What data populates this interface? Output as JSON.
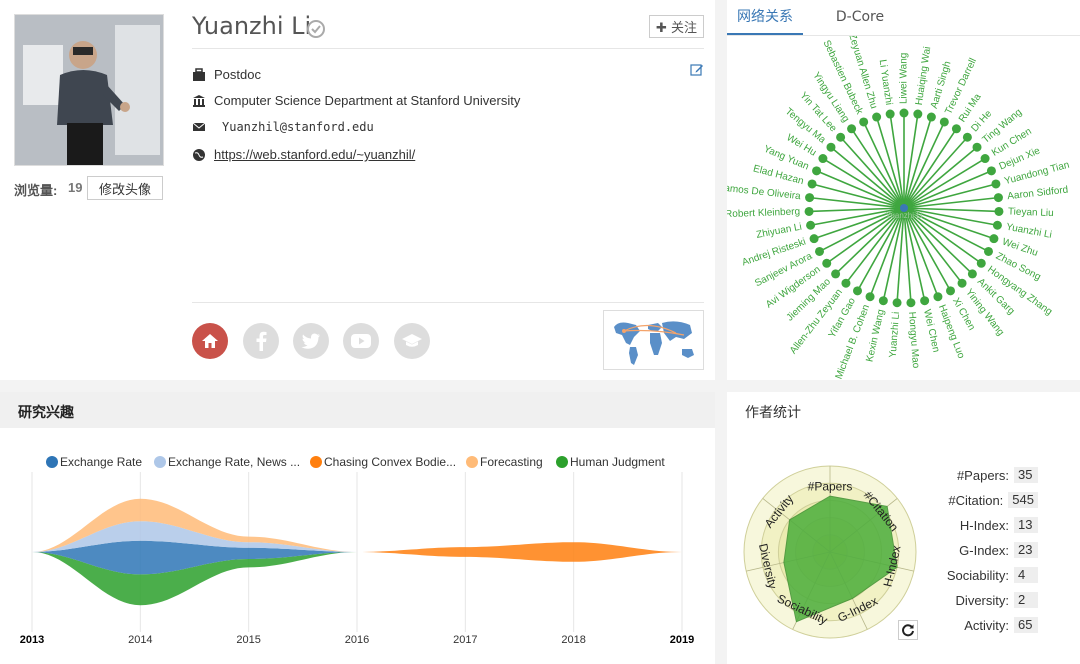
{
  "profile": {
    "name": "Yuanzhi Li",
    "follow_label": "✚ 关注",
    "views_label": "浏览量:",
    "views_count": "19",
    "change_avatar_label": "修改头像",
    "position": "Postdoc",
    "affiliation": "Computer Science Department at Stanford University",
    "email": "Yuanzhil@stanford.edu",
    "homepage": "https://web.stanford.edu/~yuanzhil/"
  },
  "network": {
    "tabs": [
      "网络关系",
      "D-Core"
    ],
    "center": "Yuanzhi Li",
    "nodes": [
      "Liwei Wang",
      "Huaiqing Wai",
      "Aarti Singh",
      "Trevor Darrell",
      "Rui Ma",
      "Di He",
      "Ting Wang",
      "Kun Chen",
      "Dejun Xie",
      "Yuandong Tian",
      "Aaron Sidford",
      "Tieyan Liu",
      "Yuanzhi Li",
      "Wei Zhu",
      "Zhao Song",
      "Hongyang Zhang",
      "Ankit Garg",
      "Yining Wang",
      "Xi Chen",
      "Haipeng Luo",
      "Wei Chen",
      "Hongyu Mao",
      "Yuanzhi Li",
      "Kexin Wang",
      "Michael B. Cohen",
      "Yifan Gao",
      "Allen-Zhu Zeyuan",
      "Jieming Mao",
      "Avi Wigderson",
      "Sanjeev Arora",
      "Andrej Risteski",
      "Zhiyuan Li",
      "Robert Kleinberg",
      "Ramos De Oliveira",
      "Elad Hazan",
      "Yang Yuan",
      "Wei Hu",
      "Tengyu Ma",
      "Yin Tat Lee",
      "Yingyu Liang",
      "Sebastien Bubeck",
      "Zeyuan Allen Zhu",
      "Li Yuanzhi"
    ]
  },
  "interests": {
    "title": "研究兴趣",
    "legend": [
      {
        "label": "Exchange Rate",
        "color": "#2e75b6"
      },
      {
        "label": "Exchange Rate, News ...",
        "color": "#aec7e8"
      },
      {
        "label": "Chasing Convex Bodie...",
        "color": "#ff7f0e"
      },
      {
        "label": "Forecasting",
        "color": "#ffbb78"
      },
      {
        "label": "Human Judgment",
        "color": "#2ca02c"
      }
    ],
    "years": [
      "2013",
      "2014",
      "2015",
      "2016",
      "2017",
      "2018",
      "2019"
    ]
  },
  "chart_data": {
    "type": "area",
    "x": [
      2013,
      2014,
      2015,
      2016,
      2017,
      2018,
      2019
    ],
    "series": [
      {
        "name": "Exchange Rate",
        "values": [
          0,
          1.2,
          0.4,
          0,
          0,
          0,
          0
        ]
      },
      {
        "name": "Exchange Rate, News ...",
        "values": [
          0,
          0.7,
          0.2,
          0,
          0,
          0,
          0
        ]
      },
      {
        "name": "Chasing Convex Bodie...",
        "values": [
          0,
          0,
          0,
          0,
          0.35,
          0.7,
          0
        ]
      },
      {
        "name": "Forecasting",
        "values": [
          0,
          0.8,
          0.2,
          0,
          0,
          0,
          0
        ]
      },
      {
        "name": "Human Judgment",
        "values": [
          0,
          1.1,
          0.3,
          0,
          0,
          0,
          0
        ]
      }
    ]
  },
  "stats": {
    "title": "作者统计",
    "rows": [
      {
        "label": "#Papers:",
        "value": "35"
      },
      {
        "label": "#Citation:",
        "value": "545"
      },
      {
        "label": "H-Index:",
        "value": "13"
      },
      {
        "label": "G-Index:",
        "value": "23"
      },
      {
        "label": "Sociability:",
        "value": "4"
      },
      {
        "label": "Diversity:",
        "value": "2"
      },
      {
        "label": "Activity:",
        "value": "65"
      }
    ],
    "radar_axes": [
      "#Papers",
      "#Citation",
      "H-Index",
      "G-Index",
      "Sociability",
      "Diversity",
      "Activity"
    ],
    "radar_values": [
      0.65,
      0.85,
      0.8,
      0.6,
      0.9,
      0.55,
      0.6
    ]
  }
}
